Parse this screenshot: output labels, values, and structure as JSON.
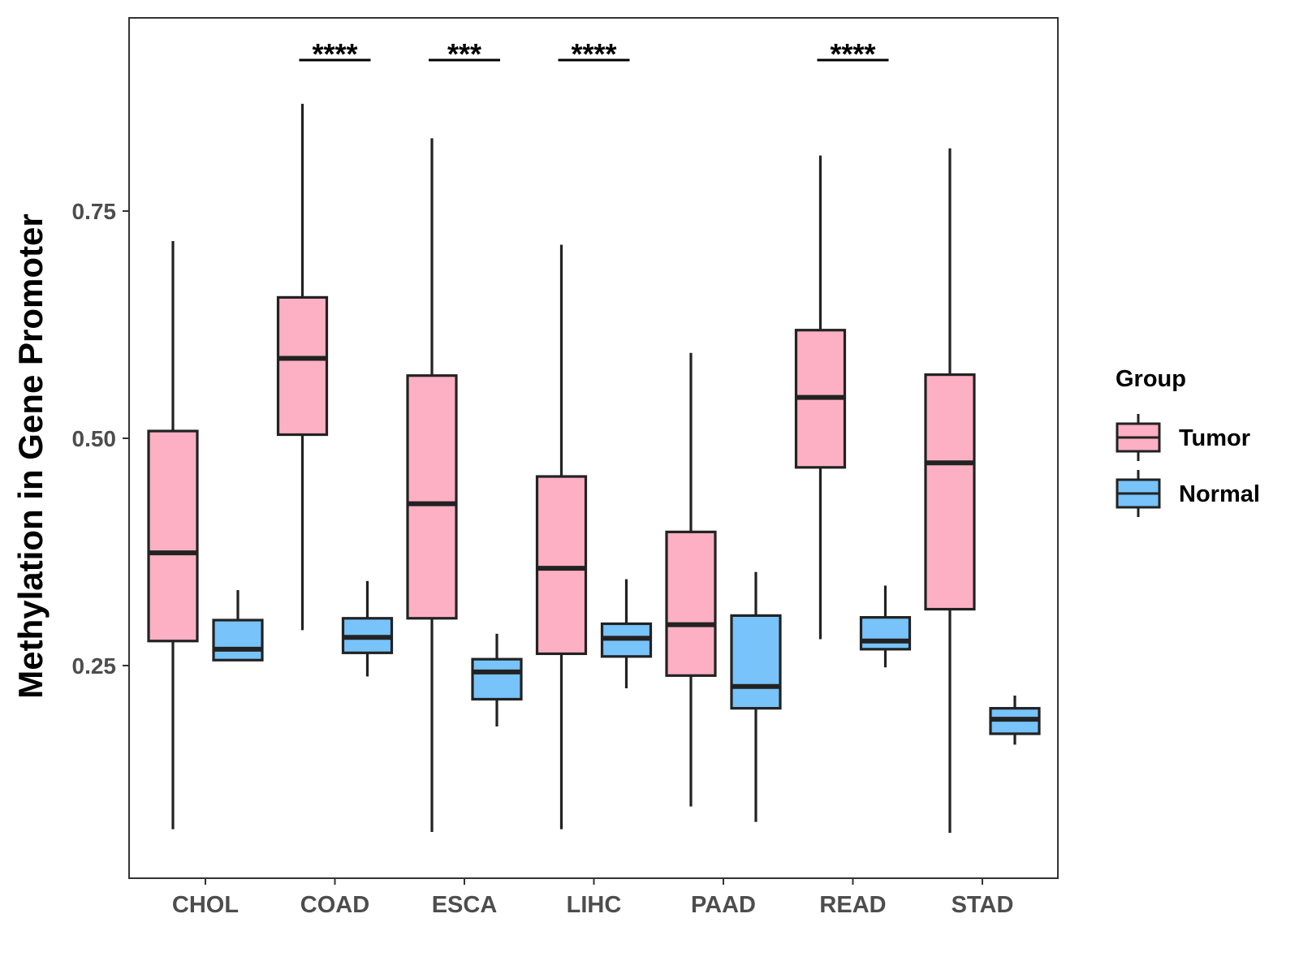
{
  "chart_data": {
    "type": "box",
    "title": "",
    "xlabel": "",
    "ylabel": "Methylation in Gene Promoter",
    "ylim": [
      0.02,
      0.97
    ],
    "yticks": [
      0.25,
      0.5,
      0.75
    ],
    "ytick_labels": [
      "0.25",
      "0.50",
      "0.75"
    ],
    "categories": [
      "CHOL",
      "COAD",
      "ESCA",
      "LIHC",
      "PAAD",
      "READ",
      "STAD"
    ],
    "legend": {
      "title": "Group",
      "position": "right",
      "entries": [
        {
          "name": "Tumor",
          "color": "#FDB0C3"
        },
        {
          "name": "Normal",
          "color": "#77C3FA"
        }
      ]
    },
    "series": [
      {
        "name": "Tumor",
        "color": "#FDB0C3",
        "boxes": [
          {
            "category": "CHOL",
            "min": 0.07,
            "q1": 0.277,
            "median": 0.374,
            "q3": 0.508,
            "max": 0.717
          },
          {
            "category": "COAD",
            "min": 0.289,
            "q1": 0.504,
            "median": 0.588,
            "q3": 0.655,
            "max": 0.868
          },
          {
            "category": "ESCA",
            "min": 0.067,
            "q1": 0.302,
            "median": 0.428,
            "q3": 0.569,
            "max": 0.83
          },
          {
            "category": "LIHC",
            "min": 0.07,
            "q1": 0.263,
            "median": 0.357,
            "q3": 0.458,
            "max": 0.713
          },
          {
            "category": "PAAD",
            "min": 0.095,
            "q1": 0.239,
            "median": 0.295,
            "q3": 0.397,
            "max": 0.594
          },
          {
            "category": "READ",
            "min": 0.279,
            "q1": 0.468,
            "median": 0.545,
            "q3": 0.619,
            "max": 0.811
          },
          {
            "category": "STAD",
            "min": 0.066,
            "q1": 0.312,
            "median": 0.473,
            "q3": 0.57,
            "max": 0.819
          }
        ]
      },
      {
        "name": "Normal",
        "color": "#77C3FA",
        "boxes": [
          {
            "category": "CHOL",
            "min": 0.255,
            "q1": 0.256,
            "median": 0.268,
            "q3": 0.3,
            "max": 0.333
          },
          {
            "category": "COAD",
            "min": 0.238,
            "q1": 0.264,
            "median": 0.281,
            "q3": 0.302,
            "max": 0.343
          },
          {
            "category": "ESCA",
            "min": 0.183,
            "q1": 0.213,
            "median": 0.243,
            "q3": 0.257,
            "max": 0.285
          },
          {
            "category": "LIHC",
            "min": 0.225,
            "q1": 0.26,
            "median": 0.28,
            "q3": 0.296,
            "max": 0.345
          },
          {
            "category": "PAAD",
            "min": 0.078,
            "q1": 0.203,
            "median": 0.227,
            "q3": 0.305,
            "max": 0.353
          },
          {
            "category": "READ",
            "min": 0.248,
            "q1": 0.268,
            "median": 0.277,
            "q3": 0.303,
            "max": 0.338
          },
          {
            "category": "STAD",
            "min": 0.163,
            "q1": 0.175,
            "median": 0.191,
            "q3": 0.203,
            "max": 0.217
          }
        ]
      }
    ],
    "annotations": [
      {
        "category": "COAD",
        "label": "****"
      },
      {
        "category": "ESCA",
        "label": "***"
      },
      {
        "category": "LIHC",
        "label": "****"
      },
      {
        "category": "READ",
        "label": "****"
      }
    ]
  }
}
